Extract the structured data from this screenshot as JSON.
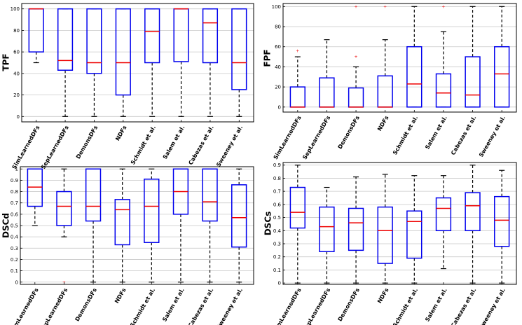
{
  "chart_data": [
    {
      "type": "box",
      "ylabel": "TPF",
      "ylim": [
        -5,
        105
      ],
      "yticks": [
        0,
        20,
        40,
        60,
        80,
        100
      ],
      "grid": true,
      "categories": [
        "SimLearnedDFs",
        "SepLearnedDFs",
        "DemonsDFs",
        "NDFs",
        "Schmidt et al.",
        "Salem et al.",
        "Cabezas et al.",
        "Sweeney et al."
      ],
      "boxes": [
        {
          "min": 50,
          "q1": 60,
          "median": 100,
          "q3": 100,
          "max": 100,
          "outliers": []
        },
        {
          "min": 0,
          "q1": 43,
          "median": 52,
          "q3": 100,
          "max": 100,
          "outliers": []
        },
        {
          "min": 0,
          "q1": 40,
          "median": 50,
          "q3": 100,
          "max": 100,
          "outliers": []
        },
        {
          "min": 0,
          "q1": 20,
          "median": 50,
          "q3": 100,
          "max": 100,
          "outliers": []
        },
        {
          "min": 0,
          "q1": 50,
          "median": 79,
          "q3": 100,
          "max": 100,
          "outliers": []
        },
        {
          "min": 0,
          "q1": 51,
          "median": 100,
          "q3": 100,
          "max": 100,
          "outliers": []
        },
        {
          "min": 0,
          "q1": 50,
          "median": 87,
          "q3": 100,
          "max": 100,
          "outliers": []
        },
        {
          "min": 0,
          "q1": 25,
          "median": 50,
          "q3": 100,
          "max": 100,
          "outliers": []
        }
      ]
    },
    {
      "type": "box",
      "ylabel": "FPF",
      "ylim": [
        -5,
        103
      ],
      "yticks": [
        0,
        20,
        40,
        60,
        80,
        100
      ],
      "grid": true,
      "categories": [
        "SimLearnedDFs",
        "SepLearnedDFs",
        "DemonsDFs",
        "NDFs",
        "Schmidt et al.",
        "Salem et al.",
        "Cabezas et al.",
        "Sweeney et al."
      ],
      "boxes": [
        {
          "min": 0,
          "q1": 0,
          "median": 0,
          "q3": 20,
          "max": 50,
          "outliers": [
            56
          ]
        },
        {
          "min": 0,
          "q1": 0,
          "median": 0,
          "q3": 29,
          "max": 67,
          "outliers": []
        },
        {
          "min": 0,
          "q1": 0,
          "median": 0,
          "q3": 19,
          "max": 40,
          "outliers": [
            50,
            100
          ]
        },
        {
          "min": 0,
          "q1": 0,
          "median": 0,
          "q3": 31,
          "max": 67,
          "outliers": [
            100
          ]
        },
        {
          "min": 0,
          "q1": 0,
          "median": 23,
          "q3": 60,
          "max": 100,
          "outliers": []
        },
        {
          "min": 0,
          "q1": 0,
          "median": 14,
          "q3": 33,
          "max": 75,
          "outliers": [
            100
          ]
        },
        {
          "min": 0,
          "q1": 0,
          "median": 12,
          "q3": 50,
          "max": 100,
          "outliers": []
        },
        {
          "min": 0,
          "q1": 0,
          "median": 33,
          "q3": 60,
          "max": 100,
          "outliers": []
        }
      ]
    },
    {
      "type": "box",
      "ylabel": "DSCd",
      "ylim": [
        -0.02,
        1.02
      ],
      "yticks": [
        0,
        0.1,
        0.2,
        0.3,
        0.4,
        0.5,
        0.6,
        0.7,
        0.8,
        0.9,
        1
      ],
      "grid": true,
      "categories": [
        "SimLearnedDFs",
        "SepLearnedDFs",
        "DemonsDFs",
        "NDFs",
        "Schmidt et al.",
        "Salem et al.",
        "Cabezas et al.",
        "Sweeney et al."
      ],
      "boxes": [
        {
          "min": 0.5,
          "q1": 0.67,
          "median": 0.84,
          "q3": 1.0,
          "max": 1.0,
          "outliers": []
        },
        {
          "min": 0.4,
          "q1": 0.5,
          "median": 0.67,
          "q3": 0.8,
          "max": 1.0,
          "outliers": [
            0
          ]
        },
        {
          "min": 0,
          "q1": 0.54,
          "median": 0.67,
          "q3": 1.0,
          "max": 1.0,
          "outliers": []
        },
        {
          "min": 0,
          "q1": 0.33,
          "median": 0.64,
          "q3": 0.73,
          "max": 1.0,
          "outliers": []
        },
        {
          "min": 0,
          "q1": 0.35,
          "median": 0.67,
          "q3": 0.91,
          "max": 1.0,
          "outliers": []
        },
        {
          "min": 0,
          "q1": 0.6,
          "median": 0.8,
          "q3": 1.0,
          "max": 1.0,
          "outliers": []
        },
        {
          "min": 0,
          "q1": 0.54,
          "median": 0.71,
          "q3": 1.0,
          "max": 1.0,
          "outliers": []
        },
        {
          "min": 0,
          "q1": 0.31,
          "median": 0.57,
          "q3": 0.86,
          "max": 1.0,
          "outliers": []
        }
      ]
    },
    {
      "type": "box",
      "ylabel": "DSCs",
      "ylim": [
        -0.01,
        0.92
      ],
      "yticks": [
        0,
        0.1,
        0.2,
        0.3,
        0.4,
        0.5,
        0.6,
        0.7,
        0.8,
        0.9
      ],
      "grid": true,
      "categories": [
        "SimLearnedDFs",
        "SepLearnedDFs",
        "DemonsDFs",
        "NDFs",
        "Schmidt et al.",
        "Salem et al.",
        "Cabezas et al.",
        "Sweeney et al."
      ],
      "boxes": [
        {
          "min": 0,
          "q1": 0.42,
          "median": 0.54,
          "q3": 0.73,
          "max": 0.9,
          "outliers": []
        },
        {
          "min": 0,
          "q1": 0.24,
          "median": 0.43,
          "q3": 0.58,
          "max": 0.73,
          "outliers": []
        },
        {
          "min": 0,
          "q1": 0.25,
          "median": 0.46,
          "q3": 0.57,
          "max": 0.81,
          "outliers": []
        },
        {
          "min": 0,
          "q1": 0.15,
          "median": 0.4,
          "q3": 0.58,
          "max": 0.83,
          "outliers": []
        },
        {
          "min": 0,
          "q1": 0.19,
          "median": 0.47,
          "q3": 0.55,
          "max": 0.82,
          "outliers": []
        },
        {
          "min": 0.11,
          "q1": 0.4,
          "median": 0.57,
          "q3": 0.65,
          "max": 0.82,
          "outliers": []
        },
        {
          "min": 0,
          "q1": 0.4,
          "median": 0.59,
          "q3": 0.69,
          "max": 0.9,
          "outliers": []
        },
        {
          "min": 0,
          "q1": 0.28,
          "median": 0.48,
          "q3": 0.66,
          "max": 0.86,
          "outliers": []
        }
      ]
    }
  ],
  "colors": {
    "box": "#0000ee",
    "median": "#ee0000",
    "whisker": "#000000",
    "grid": "#c8c8c8",
    "outlier": "#ee0000"
  }
}
